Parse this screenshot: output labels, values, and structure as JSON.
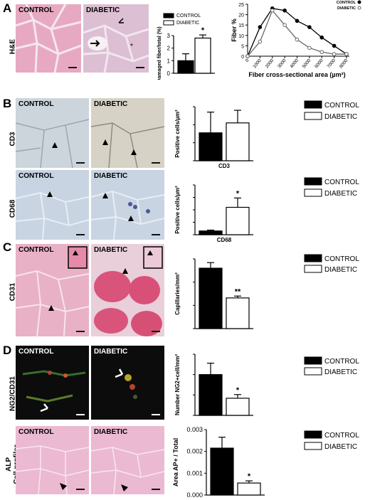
{
  "panels": {
    "A": {
      "letter": "A",
      "row_label": "H&E",
      "image_labels": [
        "CONTROL",
        "DIABETIC"
      ]
    },
    "B": {
      "letter": "B",
      "row_labels": [
        "CD3",
        "CD68"
      ],
      "image_labels": [
        "CONTROL",
        "DIABETIC",
        "CONTROL",
        "DIABETIC"
      ]
    },
    "C": {
      "letter": "C",
      "row_label": "CD31",
      "image_labels": [
        "CONTROL",
        "DIABETIC"
      ]
    },
    "D": {
      "letter": "D",
      "row_labels": [
        "NG2/CD31",
        "ALP\nCell profiler"
      ],
      "image_labels": [
        "CONTROL",
        "DIABETIC",
        "CONTROL",
        "DIABETIC"
      ]
    }
  },
  "chart_data": [
    {
      "id": "damaged-fiber",
      "type": "bar",
      "categories": [
        "CONTROL",
        "DIABETIC"
      ],
      "values": [
        1.0,
        2.8
      ],
      "errors": [
        0.55,
        0.25
      ],
      "ylabel": "Damaged fiber/total (%)",
      "ylim": [
        0,
        3
      ],
      "yticks": [
        "0",
        "1",
        "2",
        "3"
      ],
      "significance": "*",
      "legend": [
        "CONTROL",
        "DIABETIC"
      ],
      "legend_position": "top"
    },
    {
      "id": "fiber-distribution",
      "type": "line",
      "x": [
        0,
        1000,
        2000,
        3000,
        4000,
        5000,
        6000,
        7000,
        8000
      ],
      "series": [
        {
          "name": "CONTROL",
          "values": [
            0,
            14,
            23,
            22,
            17,
            14,
            9,
            5,
            1
          ]
        },
        {
          "name": "DIABETIC",
          "values": [
            0,
            7,
            22,
            15,
            8,
            4,
            2,
            1,
            1
          ]
        }
      ],
      "xlabel": "Fiber cross-sectional area (µm²)",
      "ylabel": "Fiber %",
      "ylim": [
        0,
        25
      ],
      "yticks": [
        "0",
        "5",
        "10",
        "15",
        "20",
        "25"
      ],
      "xticks": [
        "0",
        "1000",
        "2000",
        "3000",
        "4000",
        "5000",
        "6000",
        "7000",
        "8000"
      ],
      "legend_position": "top-right"
    },
    {
      "id": "cd3",
      "type": "bar",
      "categories": [
        "CONTROL",
        "DIABETIC"
      ],
      "values": [
        31,
        42
      ],
      "errors": [
        23,
        14
      ],
      "ylabel": "Positive cells/µm²",
      "xlabel": "CD3",
      "ylim": [
        0,
        60
      ],
      "significance": "",
      "legend": [
        "CONTROL",
        "DIABETIC"
      ]
    },
    {
      "id": "cd68",
      "type": "bar",
      "categories": [
        "CONTROL",
        "DIABETIC"
      ],
      "values": [
        3,
        22
      ],
      "errors": [
        0.7,
        7.5
      ],
      "ylabel": "Positive cells/µm²",
      "xlabel": "CD68",
      "ylim": [
        0,
        40
      ],
      "significance": "*",
      "legend": [
        "CONTROL",
        "DIABETIC"
      ]
    },
    {
      "id": "cd31",
      "type": "bar",
      "categories": [
        "CONTROL",
        "DIABETIC"
      ],
      "values": [
        130,
        66
      ],
      "errors": [
        12,
        4
      ],
      "ylabel": "Capillaries/mm²",
      "ylim": [
        0,
        150
      ],
      "significance": "**",
      "legend": [
        "CONTROL",
        "DIABETIC"
      ]
    },
    {
      "id": "ng2",
      "type": "bar",
      "categories": [
        "CONTROL",
        "DIABETIC"
      ],
      "values": [
        100,
        42
      ],
      "errors": [
        28,
        9
      ],
      "ylabel": "Number NG2+cell/mm²",
      "ylim": [
        0,
        150
      ],
      "significance": "*",
      "legend": [
        "CONTROL",
        "DIABETIC"
      ]
    },
    {
      "id": "alp",
      "type": "bar",
      "categories": [
        "CONTROL",
        "DIABETIC"
      ],
      "values": [
        0.00215,
        0.00055
      ],
      "errors": [
        0.0005,
        0.0001
      ],
      "ylabel": "Area AP+ / Total",
      "ylim": [
        0,
        0.003
      ],
      "yticks": [
        "0.000",
        "0.001",
        "0.002",
        "0.003"
      ],
      "significance": "*",
      "legend": [
        "CONTROL",
        "DIABETIC"
      ]
    }
  ]
}
